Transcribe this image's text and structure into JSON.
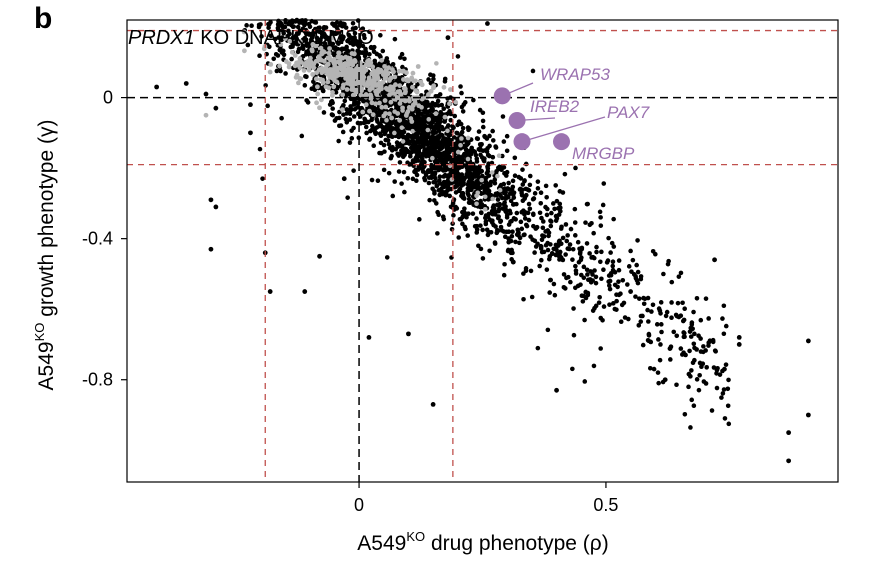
{
  "panel_label": "b",
  "chart_data": {
    "type": "scatter",
    "title_gene": "PRDX1",
    "title_rest": " KO DNAPKi/DMSO",
    "xlabel_main": "A549",
    "xlabel_sup": "KO",
    "xlabel_rest": " drug phenotype (ρ)",
    "ylabel_main": "A549",
    "ylabel_sup": "KO",
    "ylabel_rest": " growth phenotype (γ)",
    "xlim": [
      -0.47,
      0.97
    ],
    "ylim": [
      -1.09,
      0.22
    ],
    "x_ticks": [
      {
        "value": 0,
        "label": "0"
      },
      {
        "value": 0.5,
        "label": "0.5"
      }
    ],
    "y_ticks": [
      {
        "value": 0,
        "label": "0"
      },
      {
        "value": -0.4,
        "label": "-0.4"
      },
      {
        "value": -0.8,
        "label": "-0.8"
      }
    ],
    "zero_lines": {
      "x": 0,
      "y": 0,
      "style": "dashed",
      "color": "#000000"
    },
    "threshold_lines": {
      "x": [
        -0.19,
        0.19
      ],
      "y": [
        0.19,
        -0.19
      ],
      "style": "dashed",
      "color": "#c0504d"
    },
    "series": [
      {
        "color": "#000000",
        "marker_size": "small",
        "description": "genes"
      },
      {
        "color": "#b4b4b4",
        "marker_size": "small",
        "description": "non-targeting controls"
      }
    ],
    "cloud_model": {
      "slope": -1.18,
      "core_x_mean": 0.06,
      "core_x_sd": 0.14,
      "spread_y_sd": 0.07
    },
    "black_outliers": [
      [
        -0.41,
        0.03
      ],
      [
        -0.35,
        0.04
      ],
      [
        -0.31,
        0.01
      ],
      [
        -0.29,
        -0.03
      ],
      [
        -0.3,
        -0.43
      ],
      [
        -0.29,
        -0.31
      ],
      [
        -0.3,
        -0.29
      ],
      [
        -0.22,
        -0.1
      ],
      [
        -0.19,
        -0.44
      ],
      [
        -0.18,
        -0.55
      ],
      [
        -0.22,
        -0.02
      ],
      [
        -0.11,
        -0.55
      ],
      [
        0.15,
        -0.87
      ],
      [
        0.18,
        0.17
      ],
      [
        0.26,
        0.21
      ],
      [
        0.87,
        -0.95
      ],
      [
        0.87,
        -1.03
      ],
      [
        0.91,
        -0.69
      ],
      [
        0.91,
        -0.9
      ],
      [
        0.77,
        -0.68
      ],
      [
        0.77,
        -0.7
      ],
      [
        0.74,
        -0.77
      ],
      [
        0.72,
        -0.46
      ],
      [
        0.62,
        -0.8
      ],
      [
        0.4,
        -0.83
      ],
      [
        -0.03,
        -0.23
      ],
      [
        -0.08,
        -0.45
      ],
      [
        0.1,
        -0.67
      ],
      [
        0.02,
        -0.68
      ],
      [
        0.55,
        -0.55
      ]
    ],
    "grey_outliers": [
      [
        -0.31,
        -0.05
      ]
    ],
    "highlighted_genes": [
      {
        "gene": "WRAP53",
        "x": 0.29,
        "y": 0.005,
        "color": "#9b72b0"
      },
      {
        "gene": "IREB2",
        "x": 0.32,
        "y": -0.065,
        "color": "#9b72b0"
      },
      {
        "gene": "PAX7",
        "x": 0.33,
        "y": -0.125,
        "color": "#9b72b0"
      },
      {
        "gene": "MRGBP",
        "x": 0.41,
        "y": -0.125,
        "color": "#9b72b0"
      }
    ]
  }
}
